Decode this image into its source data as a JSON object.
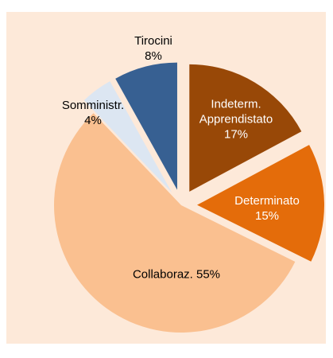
{
  "chart_data": {
    "type": "pie",
    "categories": [
      "Indeterm. Apprendistato",
      "Determinato",
      "Collaboraz.",
      "Somministr.",
      "Tirocini"
    ],
    "values": [
      17,
      15,
      55,
      4,
      8
    ],
    "value_labels": [
      "17%",
      "15%",
      "55%",
      "4%",
      "8%"
    ],
    "colors": [
      "#984807",
      "#e46c0a",
      "#fac090",
      "#dce6f2",
      "#376092"
    ],
    "explode": [
      true,
      true,
      false,
      true,
      true
    ]
  }
}
